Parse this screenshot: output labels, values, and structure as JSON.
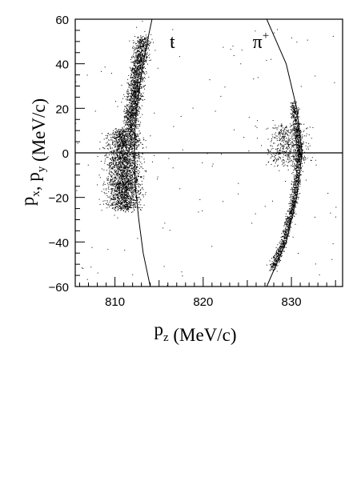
{
  "chart_data": {
    "type": "scatter",
    "title": "",
    "xlabel": {
      "base": "p",
      "sub": "z",
      "unit": " (MeV/c)"
    },
    "ylabel": {
      "parts": [
        {
          "base": "p",
          "sub": "x"
        },
        {
          "text": ", "
        },
        {
          "base": "p",
          "sub": "y"
        }
      ],
      "unit": " (MeV/c)"
    },
    "xlim": [
      805.5,
      835.8
    ],
    "ylim": [
      -60,
      60
    ],
    "x_ticks": [
      810,
      820,
      830
    ],
    "x_tick_labels": [
      "810",
      "820",
      "830"
    ],
    "x_minor_step": 1,
    "y_ticks": [
      -60,
      -40,
      -20,
      0,
      20,
      40,
      60
    ],
    "y_tick_labels": [
      "−60",
      "−40",
      "−20",
      "0",
      "20",
      "40",
      "60"
    ],
    "y_minor_step": 5,
    "grid": false,
    "zero_line": {
      "y": 0
    },
    "annotations": [
      {
        "text": "t",
        "x": 816.2,
        "y": 47
      },
      {
        "text": "π",
        "sup": "+",
        "x": 825.6,
        "y": 47
      }
    ],
    "reference_curves": [
      {
        "name": "t",
        "points": [
          [
            814.0,
            -60
          ],
          [
            813.2,
            -45
          ],
          [
            812.7,
            -30
          ],
          [
            812.3,
            -15
          ],
          [
            812.2,
            0
          ],
          [
            812.3,
            15
          ],
          [
            812.8,
            30
          ],
          [
            813.4,
            45
          ],
          [
            814.2,
            60
          ]
        ]
      },
      {
        "name": "π+",
        "points": [
          [
            827.2,
            60
          ],
          [
            829.4,
            40
          ],
          [
            830.6,
            20
          ],
          [
            831.2,
            0
          ],
          [
            830.6,
            -20
          ],
          [
            829.4,
            -40
          ],
          [
            827.2,
            -60
          ]
        ]
      }
    ],
    "series": [
      {
        "points_description": "dense cluster of events",
        "clusters": [
          {
            "x_center": 811.0,
            "x_spread": 0.9,
            "y_range": [
              -25,
              10
            ],
            "density": 2600
          },
          {
            "x_center": 811.6,
            "x_spread": 0.7,
            "y_range": [
              10,
              52
            ],
            "density": 1600,
            "curve_follow": true
          },
          {
            "x_center": 830.5,
            "x_spread": 0.35,
            "y_range": [
              -52,
              22
            ],
            "density": 1500,
            "curve_follow": true
          },
          {
            "x_center": 829.5,
            "x_spread": 1.1,
            "y_range": [
              -5,
              12
            ],
            "density": 500
          }
        ],
        "background_points": 120
      }
    ]
  }
}
